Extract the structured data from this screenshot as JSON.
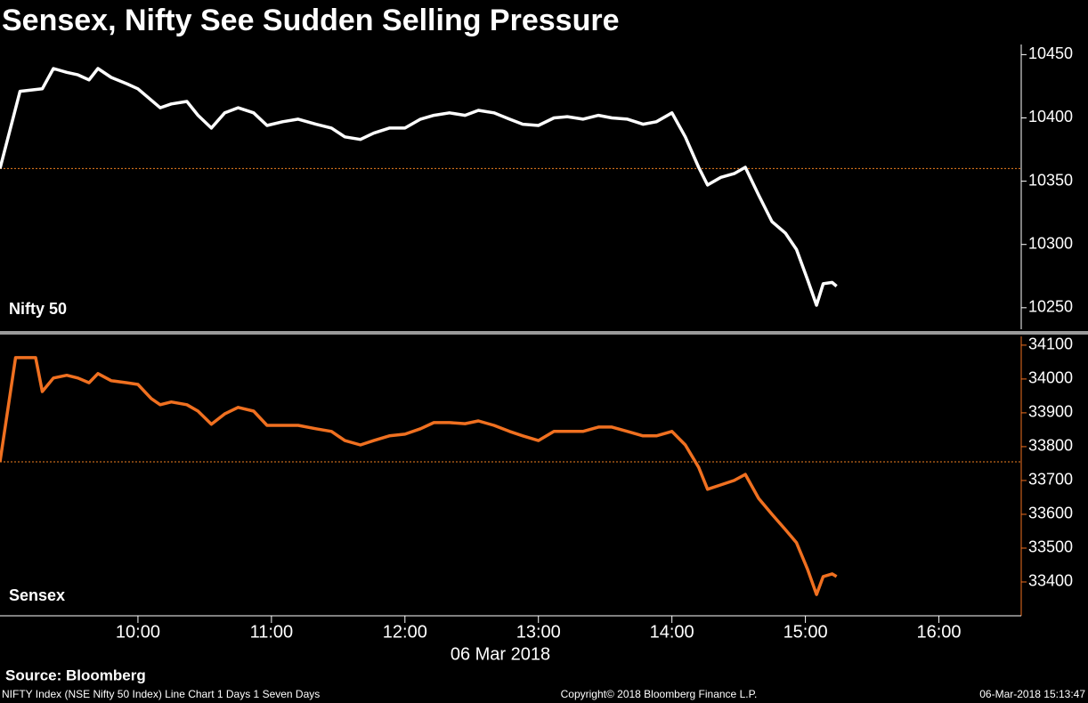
{
  "title": "Sensex, Nifty See Sudden Selling Pressure",
  "source": "Source: Bloomberg",
  "footer": {
    "left": "NIFTY Index (NSE Nifty 50 Index) Line Chart 1 Days 1 Seven Days",
    "center": "Copyright© 2018 Bloomberg Finance L.P.",
    "right": "06-Mar-2018 15:13:47"
  },
  "chart_data": [
    {
      "type": "line",
      "x": [
        "08:58",
        "09:07",
        "09:17",
        "09:22",
        "09:28",
        "09:33",
        "09:38",
        "09:42",
        "09:48",
        "09:55",
        "10:00",
        "10:06",
        "10:10",
        "10:15",
        "10:22",
        "10:27",
        "10:33",
        "10:39",
        "10:45",
        "10:52",
        "10:58",
        "11:05",
        "11:12",
        "11:20",
        "11:27",
        "11:33",
        "11:40",
        "11:46",
        "11:53",
        "12:00",
        "12:07",
        "12:13",
        "12:20",
        "12:27",
        "12:33",
        "12:40",
        "12:47",
        "12:53",
        "13:00",
        "13:07",
        "13:13",
        "13:20",
        "13:27",
        "13:33",
        "13:40",
        "13:47",
        "13:53",
        "14:00",
        "14:06",
        "14:12",
        "14:16",
        "14:22",
        "14:28",
        "14:33",
        "14:39",
        "14:45",
        "14:51",
        "14:56",
        "15:01",
        "15:05",
        "15:08",
        "15:12",
        "15:14"
      ],
      "series": [
        {
          "name": "Nifty 50",
          "color": "#ffffff",
          "values": [
            10360,
            10421,
            10423,
            10439,
            10436,
            10434,
            10430,
            10439,
            10432,
            10427,
            10423,
            10414,
            10408,
            10411,
            10413,
            10402,
            10392,
            10404,
            10408,
            10404,
            10394,
            10397,
            10399,
            10395,
            10392,
            10385,
            10383,
            10388,
            10392,
            10392,
            10399,
            10402,
            10404,
            10402,
            10406,
            10404,
            10399,
            10395,
            10394,
            10400,
            10401,
            10399,
            10402,
            10400,
            10399,
            10395,
            10397,
            10404,
            10385,
            10361,
            10347,
            10353,
            10356,
            10361,
            10339,
            10318,
            10309,
            10296,
            10272,
            10252,
            10269,
            10270,
            10267
          ]
        }
      ],
      "reference": 10360,
      "reference_color": "#f08020",
      "xlim": [
        "08:58",
        "16:37"
      ],
      "ylim": [
        10233,
        10458
      ],
      "yticks": [
        10250,
        10300,
        10350,
        10400,
        10450
      ],
      "axis_color": "#ffffff"
    },
    {
      "type": "line",
      "x": [
        "08:58",
        "09:05",
        "09:14",
        "09:17",
        "09:22",
        "09:28",
        "09:33",
        "09:38",
        "09:42",
        "09:48",
        "09:55",
        "10:00",
        "10:06",
        "10:10",
        "10:15",
        "10:22",
        "10:27",
        "10:33",
        "10:39",
        "10:45",
        "10:52",
        "10:58",
        "11:05",
        "11:12",
        "11:20",
        "11:27",
        "11:33",
        "11:40",
        "11:46",
        "11:53",
        "12:00",
        "12:07",
        "12:13",
        "12:20",
        "12:27",
        "12:33",
        "12:40",
        "12:47",
        "12:53",
        "13:00",
        "13:07",
        "13:13",
        "13:20",
        "13:27",
        "13:33",
        "13:40",
        "13:47",
        "13:53",
        "14:00",
        "14:06",
        "14:12",
        "14:16",
        "14:22",
        "14:28",
        "14:33",
        "14:39",
        "14:45",
        "14:51",
        "14:56",
        "15:01",
        "15:05",
        "15:08",
        "15:12",
        "15:14"
      ],
      "series": [
        {
          "name": "Sensex",
          "color": "#f07020",
          "values": [
            33755,
            34063,
            34063,
            33963,
            34003,
            34011,
            34003,
            33989,
            34016,
            33995,
            33989,
            33984,
            33942,
            33924,
            33932,
            33924,
            33905,
            33866,
            33897,
            33916,
            33905,
            33863,
            33863,
            33863,
            33853,
            33845,
            33818,
            33805,
            33818,
            33832,
            33837,
            33853,
            33871,
            33871,
            33868,
            33876,
            33863,
            33845,
            33832,
            33818,
            33845,
            33845,
            33845,
            33858,
            33858,
            33845,
            33832,
            33832,
            33845,
            33805,
            33739,
            33674,
            33687,
            33700,
            33718,
            33647,
            33600,
            33555,
            33516,
            33437,
            33363,
            33416,
            33424,
            33416
          ]
        }
      ],
      "reference": 33755,
      "reference_color": "#f08020",
      "xlim": [
        "08:58",
        "16:37"
      ],
      "xticks": [
        "10:00",
        "11:00",
        "12:00",
        "13:00",
        "14:00",
        "15:00",
        "16:00"
      ],
      "xlabel": "06 Mar 2018",
      "ylim": [
        33300,
        34126
      ],
      "yticks": [
        33400,
        33500,
        33600,
        33700,
        33800,
        33900,
        34000,
        34100
      ],
      "axis_color": "#f07020"
    }
  ]
}
